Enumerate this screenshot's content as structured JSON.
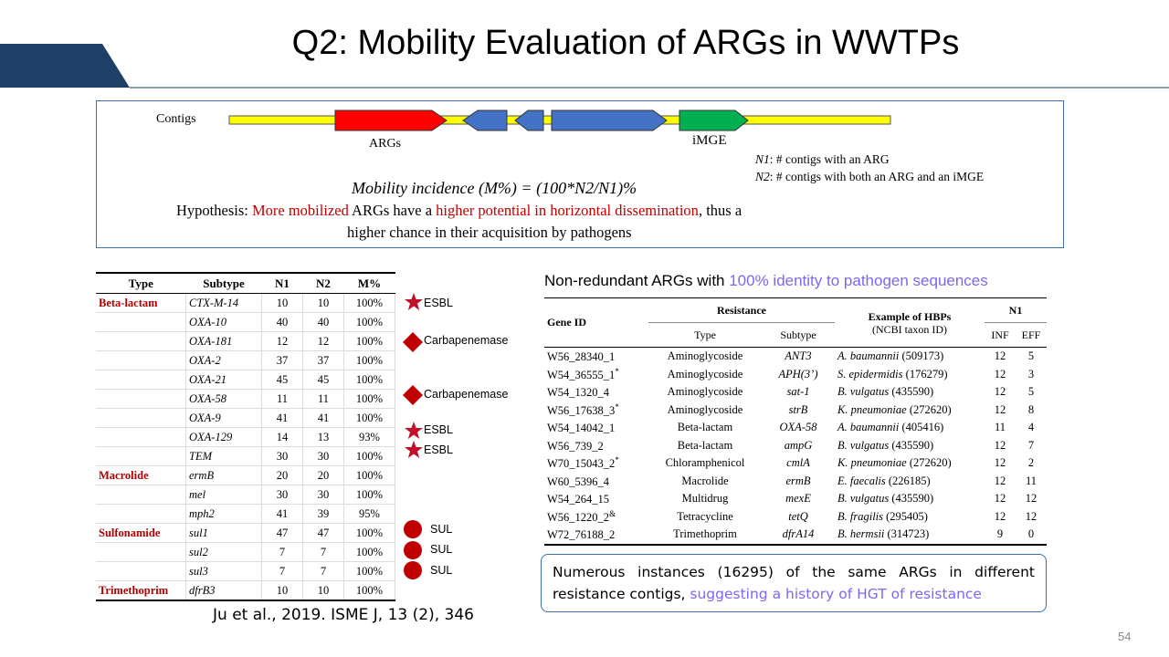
{
  "slide": {
    "title": "Q2: Mobility Evaluation of ARGs in WWTPs",
    "page_number": "54",
    "citation": "Ju et al., 2019. ISME J, 13 (2), 346",
    "colors": {
      "header_blue": "#1f3f66",
      "accent_red": "#c00000",
      "accent_purple": "#7b68ee",
      "box_border": "#3a6fb5"
    }
  },
  "concept": {
    "contigs_label": "Contigs",
    "args_label": "ARGs",
    "imge_label": "iMGE",
    "n1_def_var": "N1",
    "n1_def_text": ": # contigs  with an ARG",
    "n2_def_var": "N2",
    "n2_def_text": ": # contigs  with both an ARG and an iMGE",
    "formula": "Mobility incidence (M%) = (100*N2/N1)%",
    "hypothesis_prefix": "Hypothesis: ",
    "hypothesis_red1": "More mobilized",
    "hypothesis_mid": " ARGs have a ",
    "hypothesis_red2": "higher potential in horizontal dissemination",
    "hypothesis_suffix": ", thus a",
    "hypothesis_line2": "higher chance in their acquisition by pathogens"
  },
  "left_table": {
    "headers": [
      "Type",
      "Subtype",
      "N1",
      "N2",
      "M%"
    ],
    "rows": [
      {
        "type": "Beta-lactam",
        "subtype": "CTX-M-14",
        "n1": "10",
        "n2": "10",
        "m": "100%"
      },
      {
        "type": "",
        "subtype": "OXA-10",
        "n1": "40",
        "n2": "40",
        "m": "100%"
      },
      {
        "type": "",
        "subtype": "OXA-181",
        "n1": "12",
        "n2": "12",
        "m": "100%"
      },
      {
        "type": "",
        "subtype": "OXA-2",
        "n1": "37",
        "n2": "37",
        "m": "100%"
      },
      {
        "type": "",
        "subtype": "OXA-21",
        "n1": "45",
        "n2": "45",
        "m": "100%"
      },
      {
        "type": "",
        "subtype": "OXA-58",
        "n1": "11",
        "n2": "11",
        "m": "100%"
      },
      {
        "type": "",
        "subtype": "OXA-9",
        "n1": "41",
        "n2": "41",
        "m": "100%"
      },
      {
        "type": "",
        "subtype": "OXA-129",
        "n1": "14",
        "n2": "13",
        "m": "93%"
      },
      {
        "type": "",
        "subtype": "TEM",
        "n1": "30",
        "n2": "30",
        "m": "100%"
      },
      {
        "type": "Macrolide",
        "subtype": "ermB",
        "n1": "20",
        "n2": "20",
        "m": "100%"
      },
      {
        "type": "",
        "subtype": "mel",
        "n1": "30",
        "n2": "30",
        "m": "100%"
      },
      {
        "type": "",
        "subtype": "mph2",
        "n1": "41",
        "n2": "39",
        "m": "95%"
      },
      {
        "type": "Sulfonamide",
        "subtype": "sul1",
        "n1": "47",
        "n2": "47",
        "m": "100%"
      },
      {
        "type": "",
        "subtype": "sul2",
        "n1": "7",
        "n2": "7",
        "m": "100%"
      },
      {
        "type": "",
        "subtype": "sul3",
        "n1": "7",
        "n2": "7",
        "m": "100%"
      },
      {
        "type": "Trimethoprim",
        "subtype": "dfrB3",
        "n1": "10",
        "n2": "10",
        "m": "100%"
      }
    ]
  },
  "markers": {
    "esbl1": "ESBL",
    "carb1": "Carbapenemase",
    "carb2": "Carbapenemase",
    "esbl2": "ESBL",
    "esbl3": "ESBL",
    "sul1": "SUL",
    "sul2": "SUL",
    "sul3": "SUL"
  },
  "right_table": {
    "title_prefix": "Non-redundant ARGs with ",
    "title_highlight": "100% identity to pathogen sequences",
    "h_gene": "Gene ID",
    "h_resistance": "Resistance",
    "h_hbp1": "Example of HBPs",
    "h_hbp2": "(NCBI taxon ID)",
    "h_n1": "N1",
    "h_type": "Type",
    "h_subtype": "Subtype",
    "h_inf": "INF",
    "h_eff": "EFF",
    "rows": [
      {
        "gid": "W56_28340_1",
        "sup": "",
        "type": "Aminoglycoside",
        "sub": "ANT3",
        "sp": "A. baumannii",
        "tax": " (509173)",
        "inf": "12",
        "eff": "5"
      },
      {
        "gid": "W54_36555_1",
        "sup": "*",
        "type": "Aminoglycoside",
        "sub": "APH(3’)",
        "sp": "S. epidermidis",
        "tax": " (176279)",
        "inf": "12",
        "eff": "3"
      },
      {
        "gid": "W54_1320_4",
        "sup": "",
        "type": "Aminoglycoside",
        "sub": "sat-1",
        "sp": "B. vulgatus",
        "tax": " (435590)",
        "inf": "12",
        "eff": "5"
      },
      {
        "gid": "W56_17638_3",
        "sup": "*",
        "type": "Aminoglycoside",
        "sub": "strB",
        "sp": "K. pneumoniae",
        "tax": " (272620)",
        "inf": "12",
        "eff": "8"
      },
      {
        "gid": "W54_14042_1",
        "sup": "",
        "type": "Beta-lactam",
        "sub": "OXA-58",
        "sp": "A. baumannii",
        "tax": " (405416)",
        "inf": "11",
        "eff": "4"
      },
      {
        "gid": "W56_739_2",
        "sup": "",
        "type": "Beta-lactam",
        "sub": "ampG",
        "sp": "B. vulgatus",
        "tax": " (435590)",
        "inf": "12",
        "eff": "7"
      },
      {
        "gid": "W70_15043_2",
        "sup": "*",
        "type": "Chloramphenicol",
        "sub": "cmlA",
        "sp": "K. pneumoniae",
        "tax": " (272620)",
        "inf": "12",
        "eff": "2"
      },
      {
        "gid": "W60_5396_4",
        "sup": "",
        "type": "Macrolide",
        "sub": "ermB",
        "sp": "E. faecalis",
        "tax": " (226185)",
        "inf": "12",
        "eff": "11"
      },
      {
        "gid": "W54_264_15",
        "sup": "",
        "type": "Multidrug",
        "sub": "mexE",
        "sp": "B. vulgatus",
        "tax": " (435590)",
        "inf": "12",
        "eff": "12"
      },
      {
        "gid": "W56_1220_2",
        "sup": "&",
        "type": "Tetracycline",
        "sub": "tetQ",
        "sp": "B. fragilis",
        "tax": " (295405)",
        "inf": "12",
        "eff": "12"
      },
      {
        "gid": "W72_76188_2",
        "sup": "",
        "type": "Trimethoprim",
        "sub": "dfrA14",
        "sp": "B. hermsii",
        "tax": " (314723)",
        "inf": "9",
        "eff": "0"
      }
    ]
  },
  "summary": {
    "text": "Numerous instances (16295)  of the same ARGs in different resistance contigs, ",
    "highlight": "suggesting a history of HGT of resistance"
  }
}
